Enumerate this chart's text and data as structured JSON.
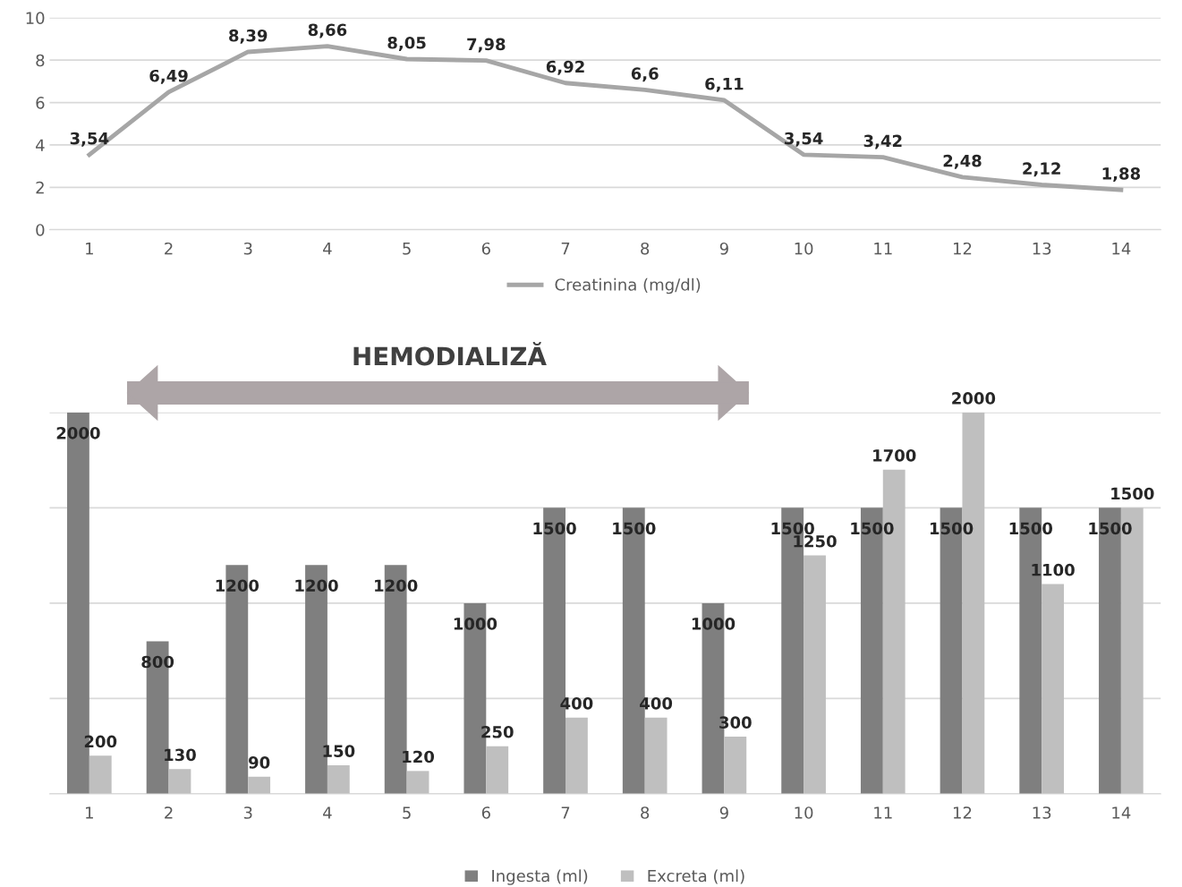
{
  "chart_data": [
    {
      "type": "line",
      "categories": [
        "1",
        "2",
        "3",
        "4",
        "5",
        "6",
        "7",
        "8",
        "9",
        "10",
        "11",
        "12",
        "13",
        "14"
      ],
      "series": [
        {
          "name": "Creatinina (mg/dl)",
          "color": "#a6a6a6",
          "values": [
            3.54,
            6.49,
            8.39,
            8.66,
            8.05,
            7.98,
            6.92,
            6.6,
            6.11,
            3.54,
            3.42,
            2.48,
            2.12,
            1.88
          ]
        }
      ],
      "value_labels": [
        "3,54",
        "6,49",
        "8,39",
        "8,66",
        "8,05",
        "7,98",
        "6,92",
        "6,6",
        "6,11",
        "3,54",
        "3,42",
        "2,48",
        "2,12",
        "1,88"
      ],
      "ylim": [
        0,
        10
      ],
      "yticks": [
        0,
        2,
        4,
        6,
        8,
        10
      ],
      "grid": "y",
      "legend": "bottom",
      "marker": "none",
      "line_style": "solid"
    },
    {
      "type": "bar",
      "categories": [
        "1",
        "2",
        "3",
        "4",
        "5",
        "6",
        "7",
        "8",
        "9",
        "10",
        "11",
        "12",
        "13",
        "14"
      ],
      "series": [
        {
          "name": "Ingesta (ml)",
          "color": "#7f7f7f",
          "values": [
            2000,
            800,
            1200,
            1200,
            1200,
            1000,
            1500,
            1500,
            1000,
            1500,
            1500,
            1500,
            1500,
            1500
          ]
        },
        {
          "name": "Excreta (ml)",
          "color": "#bfbfbf",
          "values": [
            200,
            130,
            90,
            150,
            120,
            250,
            400,
            400,
            300,
            1250,
            1700,
            2000,
            1100,
            1500
          ]
        }
      ],
      "data_labels": true,
      "ylim": [
        0,
        2000
      ],
      "yticks": [
        {
          "value": 0,
          "label": null
        },
        {
          "value": 500,
          "label": null
        },
        {
          "value": 1000,
          "label": null
        },
        {
          "value": 1500,
          "label": null
        },
        {
          "value": 2000,
          "label": null
        }
      ],
      "tick_labels": "x",
      "grid": "y",
      "legend": "bottom",
      "annotations": [
        "HEMODIALIZĂ"
      ]
    }
  ]
}
